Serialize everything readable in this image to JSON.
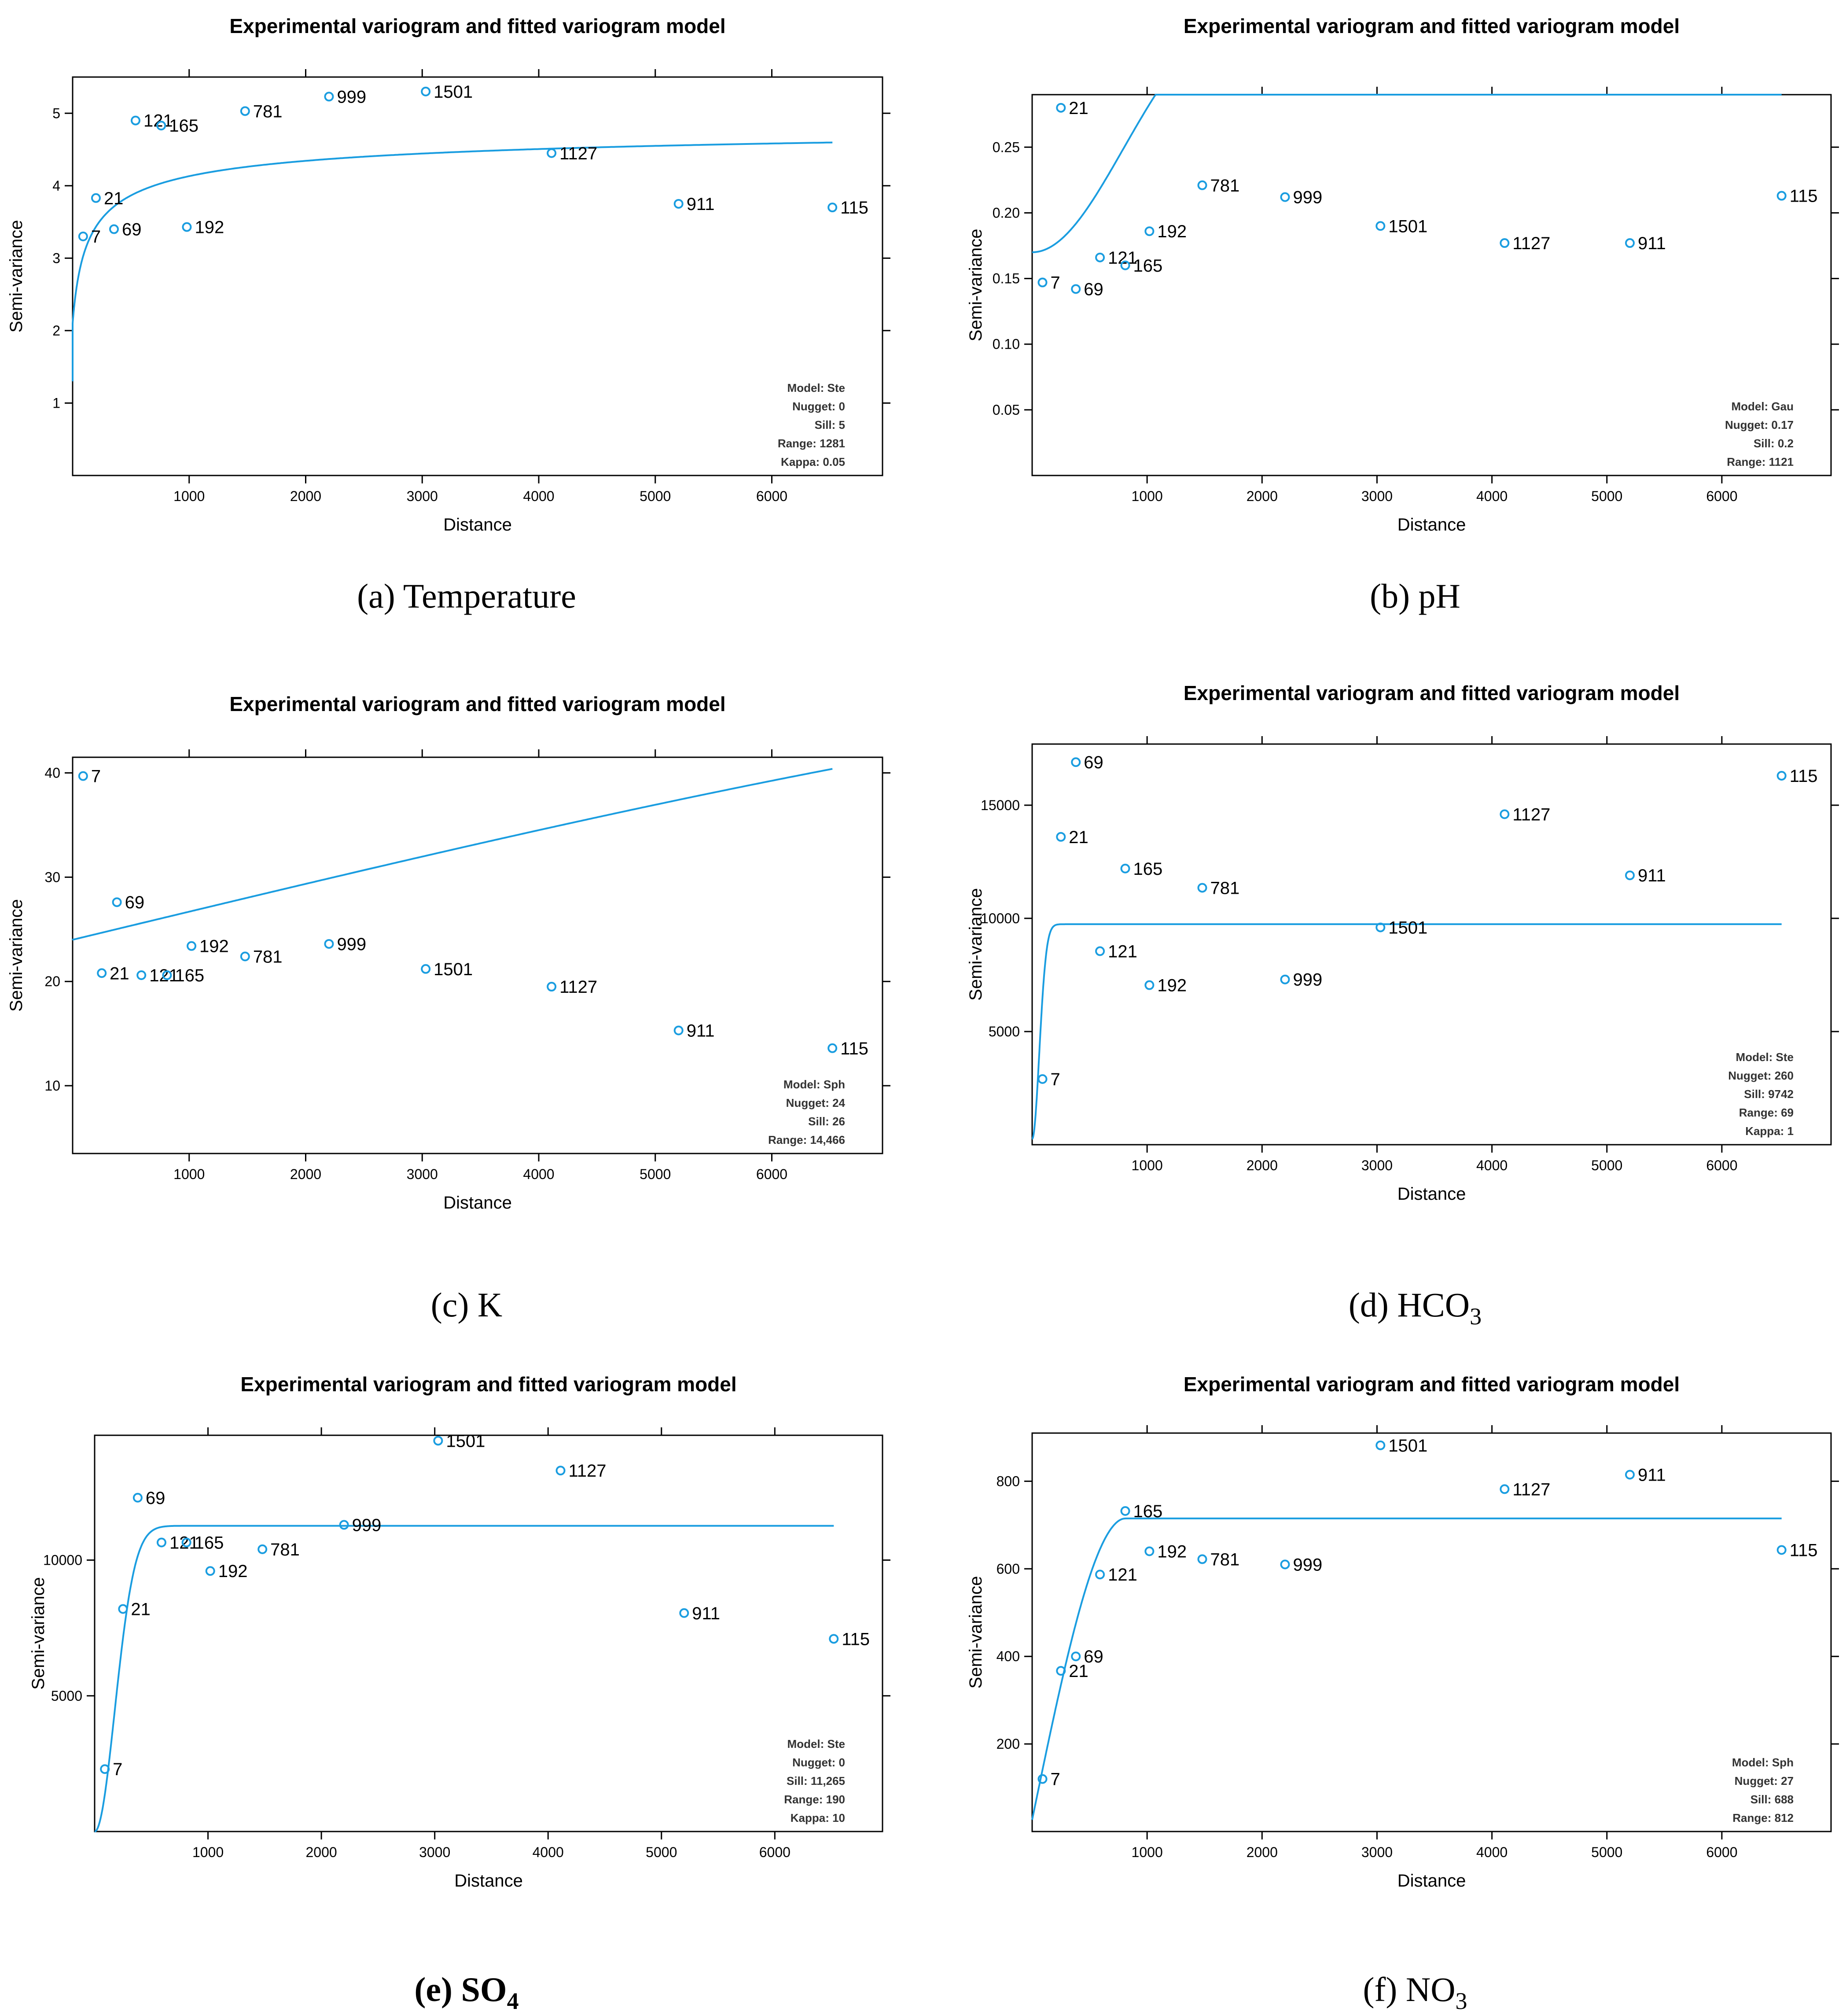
{
  "figure": {
    "captions": [
      {
        "prefix": "(a) ",
        "text": "Temperature",
        "sub": ""
      },
      {
        "prefix": "(b) ",
        "text": "pH",
        "sub": ""
      },
      {
        "prefix": "(c) ",
        "text": "K",
        "sub": ""
      },
      {
        "prefix": "(d) ",
        "text": "HCO",
        "sub": "3"
      },
      {
        "prefix": "(e) ",
        "text": "SO",
        "sub": "4"
      },
      {
        "prefix": "(f) ",
        "text": "NO",
        "sub": "3"
      }
    ]
  },
  "colors": {
    "series": "#1a9de0",
    "axis": "#000000"
  },
  "chart_data": [
    {
      "type": "scatter",
      "title": "Experimental variogram and fitted variogram model",
      "xlabel": "Distance",
      "ylabel": "Semi-variance",
      "xlim": [
        0,
        6950
      ],
      "ylim": [
        0,
        5.5
      ],
      "xticks": [
        1000,
        2000,
        3000,
        4000,
        5000,
        6000
      ],
      "yticks": [
        1,
        2,
        3,
        4,
        5
      ],
      "points": [
        {
          "x": 90,
          "y": 3.3,
          "label": "7"
        },
        {
          "x": 200,
          "y": 3.83,
          "label": "21"
        },
        {
          "x": 355,
          "y": 3.4,
          "label": "69"
        },
        {
          "x": 540,
          "y": 4.9,
          "label": "121"
        },
        {
          "x": 760,
          "y": 4.83,
          "label": "165"
        },
        {
          "x": 980,
          "y": 3.43,
          "label": "192"
        },
        {
          "x": 1480,
          "y": 5.03,
          "label": "781"
        },
        {
          "x": 2200,
          "y": 5.23,
          "label": "999"
        },
        {
          "x": 3030,
          "y": 5.3,
          "label": "1501"
        },
        {
          "x": 4110,
          "y": 4.45,
          "label": "1127"
        },
        {
          "x": 5200,
          "y": 3.75,
          "label": "911"
        },
        {
          "x": 6520,
          "y": 3.7,
          "label": "115"
        }
      ],
      "model": {
        "type": "Ste",
        "nugget": 0,
        "sill": 5,
        "range": 1281,
        "kappa": 0.05
      },
      "model_text": [
        "Model: Ste",
        "Nugget: 0",
        "Sill: 5",
        "Range: 1281",
        "Kappa: 0.05"
      ]
    },
    {
      "type": "scatter",
      "title": "Experimental variogram and fitted variogram model",
      "xlabel": "Distance",
      "ylabel": "Semi-variance",
      "xlim": [
        0,
        6950
      ],
      "ylim": [
        0,
        0.29
      ],
      "xticks": [
        1000,
        2000,
        3000,
        4000,
        5000,
        6000
      ],
      "yticks": [
        0.05,
        0.1,
        0.15,
        0.2,
        0.25
      ],
      "ytick_labels": [
        "0.05",
        "0.10",
        "0.15",
        "0.20",
        "0.25"
      ],
      "points": [
        {
          "x": 90,
          "y": 0.147,
          "label": "7"
        },
        {
          "x": 250,
          "y": 0.28,
          "label": "21"
        },
        {
          "x": 380,
          "y": 0.142,
          "label": "69"
        },
        {
          "x": 590,
          "y": 0.166,
          "label": "121"
        },
        {
          "x": 810,
          "y": 0.16,
          "label": "165"
        },
        {
          "x": 1020,
          "y": 0.186,
          "label": "192"
        },
        {
          "x": 1480,
          "y": 0.221,
          "label": "781"
        },
        {
          "x": 2200,
          "y": 0.212,
          "label": "999"
        },
        {
          "x": 3030,
          "y": 0.19,
          "label": "1501"
        },
        {
          "x": 4110,
          "y": 0.177,
          "label": "1127"
        },
        {
          "x": 5200,
          "y": 0.177,
          "label": "911"
        },
        {
          "x": 6520,
          "y": 0.213,
          "label": "115"
        }
      ],
      "model": {
        "type": "Gau",
        "nugget": 0.17,
        "sill": 0.2,
        "range": 1121
      },
      "model_text": [
        "Model: Gau",
        "Nugget: 0.17",
        "Sill: 0.2",
        "Range: 1121"
      ]
    },
    {
      "type": "scatter",
      "title": "Experimental variogram and fitted variogram model",
      "xlabel": "Distance",
      "ylabel": "Semi-variance",
      "xlim": [
        0,
        6950
      ],
      "ylim": [
        3.5,
        41.5
      ],
      "xticks": [
        1000,
        2000,
        3000,
        4000,
        5000,
        6000
      ],
      "yticks": [
        10,
        20,
        30,
        40
      ],
      "points": [
        {
          "x": 90,
          "y": 39.7,
          "label": "7"
        },
        {
          "x": 250,
          "y": 20.8,
          "label": "21"
        },
        {
          "x": 380,
          "y": 27.6,
          "label": "69"
        },
        {
          "x": 590,
          "y": 20.6,
          "label": "121"
        },
        {
          "x": 810,
          "y": 20.6,
          "label": "165"
        },
        {
          "x": 1020,
          "y": 23.4,
          "label": "192"
        },
        {
          "x": 1480,
          "y": 22.4,
          "label": "781"
        },
        {
          "x": 2200,
          "y": 23.6,
          "label": "999"
        },
        {
          "x": 3030,
          "y": 21.2,
          "label": "1501"
        },
        {
          "x": 4110,
          "y": 19.5,
          "label": "1127"
        },
        {
          "x": 5200,
          "y": 15.3,
          "label": "911"
        },
        {
          "x": 6520,
          "y": 13.6,
          "label": "115"
        }
      ],
      "model": {
        "type": "Sph",
        "nugget": 24,
        "sill": 26,
        "range": 14466
      },
      "model_text": [
        "Model: Sph",
        "Nugget: 24",
        "Sill: 26",
        "Range: 14,466"
      ]
    },
    {
      "type": "scatter",
      "title": "Experimental variogram and fitted variogram model",
      "xlabel": "Distance",
      "ylabel": "Semi-variance",
      "xlim": [
        0,
        6950
      ],
      "ylim": [
        0,
        17700
      ],
      "xticks": [
        1000,
        2000,
        3000,
        4000,
        5000,
        6000
      ],
      "yticks": [
        5000,
        10000,
        15000
      ],
      "points": [
        {
          "x": 90,
          "y": 2900,
          "label": "7"
        },
        {
          "x": 250,
          "y": 13600,
          "label": "21"
        },
        {
          "x": 380,
          "y": 16900,
          "label": "69"
        },
        {
          "x": 590,
          "y": 8550,
          "label": "121"
        },
        {
          "x": 810,
          "y": 12200,
          "label": "165"
        },
        {
          "x": 1020,
          "y": 7050,
          "label": "192"
        },
        {
          "x": 1480,
          "y": 11350,
          "label": "781"
        },
        {
          "x": 2200,
          "y": 7300,
          "label": "999"
        },
        {
          "x": 3030,
          "y": 9600,
          "label": "1501"
        },
        {
          "x": 4110,
          "y": 14600,
          "label": "1127"
        },
        {
          "x": 5200,
          "y": 11900,
          "label": "911"
        },
        {
          "x": 6520,
          "y": 16300,
          "label": "115"
        }
      ],
      "model": {
        "type": "Ste",
        "nugget": 260,
        "sill": 9742,
        "range": 69,
        "kappa": 1
      },
      "model_text": [
        "Model: Ste",
        "Nugget: 260",
        "Sill: 9742",
        "Range: 69",
        "Kappa: 1"
      ]
    },
    {
      "type": "scatter",
      "title": "Experimental variogram and fitted variogram model",
      "xlabel": "Distance",
      "ylabel": "Semi-variance",
      "xlim": [
        0,
        6950
      ],
      "ylim": [
        0,
        14600
      ],
      "xticks": [
        1000,
        2000,
        3000,
        4000,
        5000,
        6000
      ],
      "yticks": [
        5000,
        10000
      ],
      "points": [
        {
          "x": 90,
          "y": 2300,
          "label": "7"
        },
        {
          "x": 250,
          "y": 8200,
          "label": "21"
        },
        {
          "x": 380,
          "y": 12300,
          "label": "69"
        },
        {
          "x": 590,
          "y": 10650,
          "label": "121"
        },
        {
          "x": 810,
          "y": 10650,
          "label": "165"
        },
        {
          "x": 1020,
          "y": 9600,
          "label": "192"
        },
        {
          "x": 1480,
          "y": 10400,
          "label": "781"
        },
        {
          "x": 2200,
          "y": 11300,
          "label": "999"
        },
        {
          "x": 3030,
          "y": 14400,
          "label": "1501"
        },
        {
          "x": 4110,
          "y": 13300,
          "label": "1127"
        },
        {
          "x": 5200,
          "y": 8050,
          "label": "911"
        },
        {
          "x": 6520,
          "y": 7100,
          "label": "115"
        }
      ],
      "model": {
        "type": "Ste",
        "nugget": 0,
        "sill": 11265,
        "range": 190,
        "kappa": 10
      },
      "model_text": [
        "Model: Ste",
        "Nugget: 0",
        "Sill: 11,265",
        "Range: 190",
        "Kappa: 10"
      ]
    },
    {
      "type": "scatter",
      "title": "Experimental variogram and fitted variogram model",
      "xlabel": "Distance",
      "ylabel": "Semi-variance",
      "xlim": [
        0,
        6950
      ],
      "ylim": [
        0,
        910
      ],
      "xticks": [
        1000,
        2000,
        3000,
        4000,
        5000,
        6000
      ],
      "yticks": [
        200,
        400,
        600,
        800
      ],
      "points": [
        {
          "x": 90,
          "y": 120,
          "label": "7"
        },
        {
          "x": 250,
          "y": 367,
          "label": "21"
        },
        {
          "x": 380,
          "y": 400,
          "label": "69"
        },
        {
          "x": 590,
          "y": 587,
          "label": "121"
        },
        {
          "x": 810,
          "y": 732,
          "label": "165"
        },
        {
          "x": 1020,
          "y": 640,
          "label": "192"
        },
        {
          "x": 1480,
          "y": 622,
          "label": "781"
        },
        {
          "x": 2200,
          "y": 610,
          "label": "999"
        },
        {
          "x": 3030,
          "y": 882,
          "label": "1501"
        },
        {
          "x": 4110,
          "y": 782,
          "label": "1127"
        },
        {
          "x": 5200,
          "y": 815,
          "label": "911"
        },
        {
          "x": 6520,
          "y": 643,
          "label": "115"
        }
      ],
      "model": {
        "type": "Sph",
        "nugget": 27,
        "sill": 688,
        "range": 812
      },
      "model_text": [
        "Model: Sph",
        "Nugget: 27",
        "Sill: 688",
        "Range: 812"
      ]
    }
  ]
}
